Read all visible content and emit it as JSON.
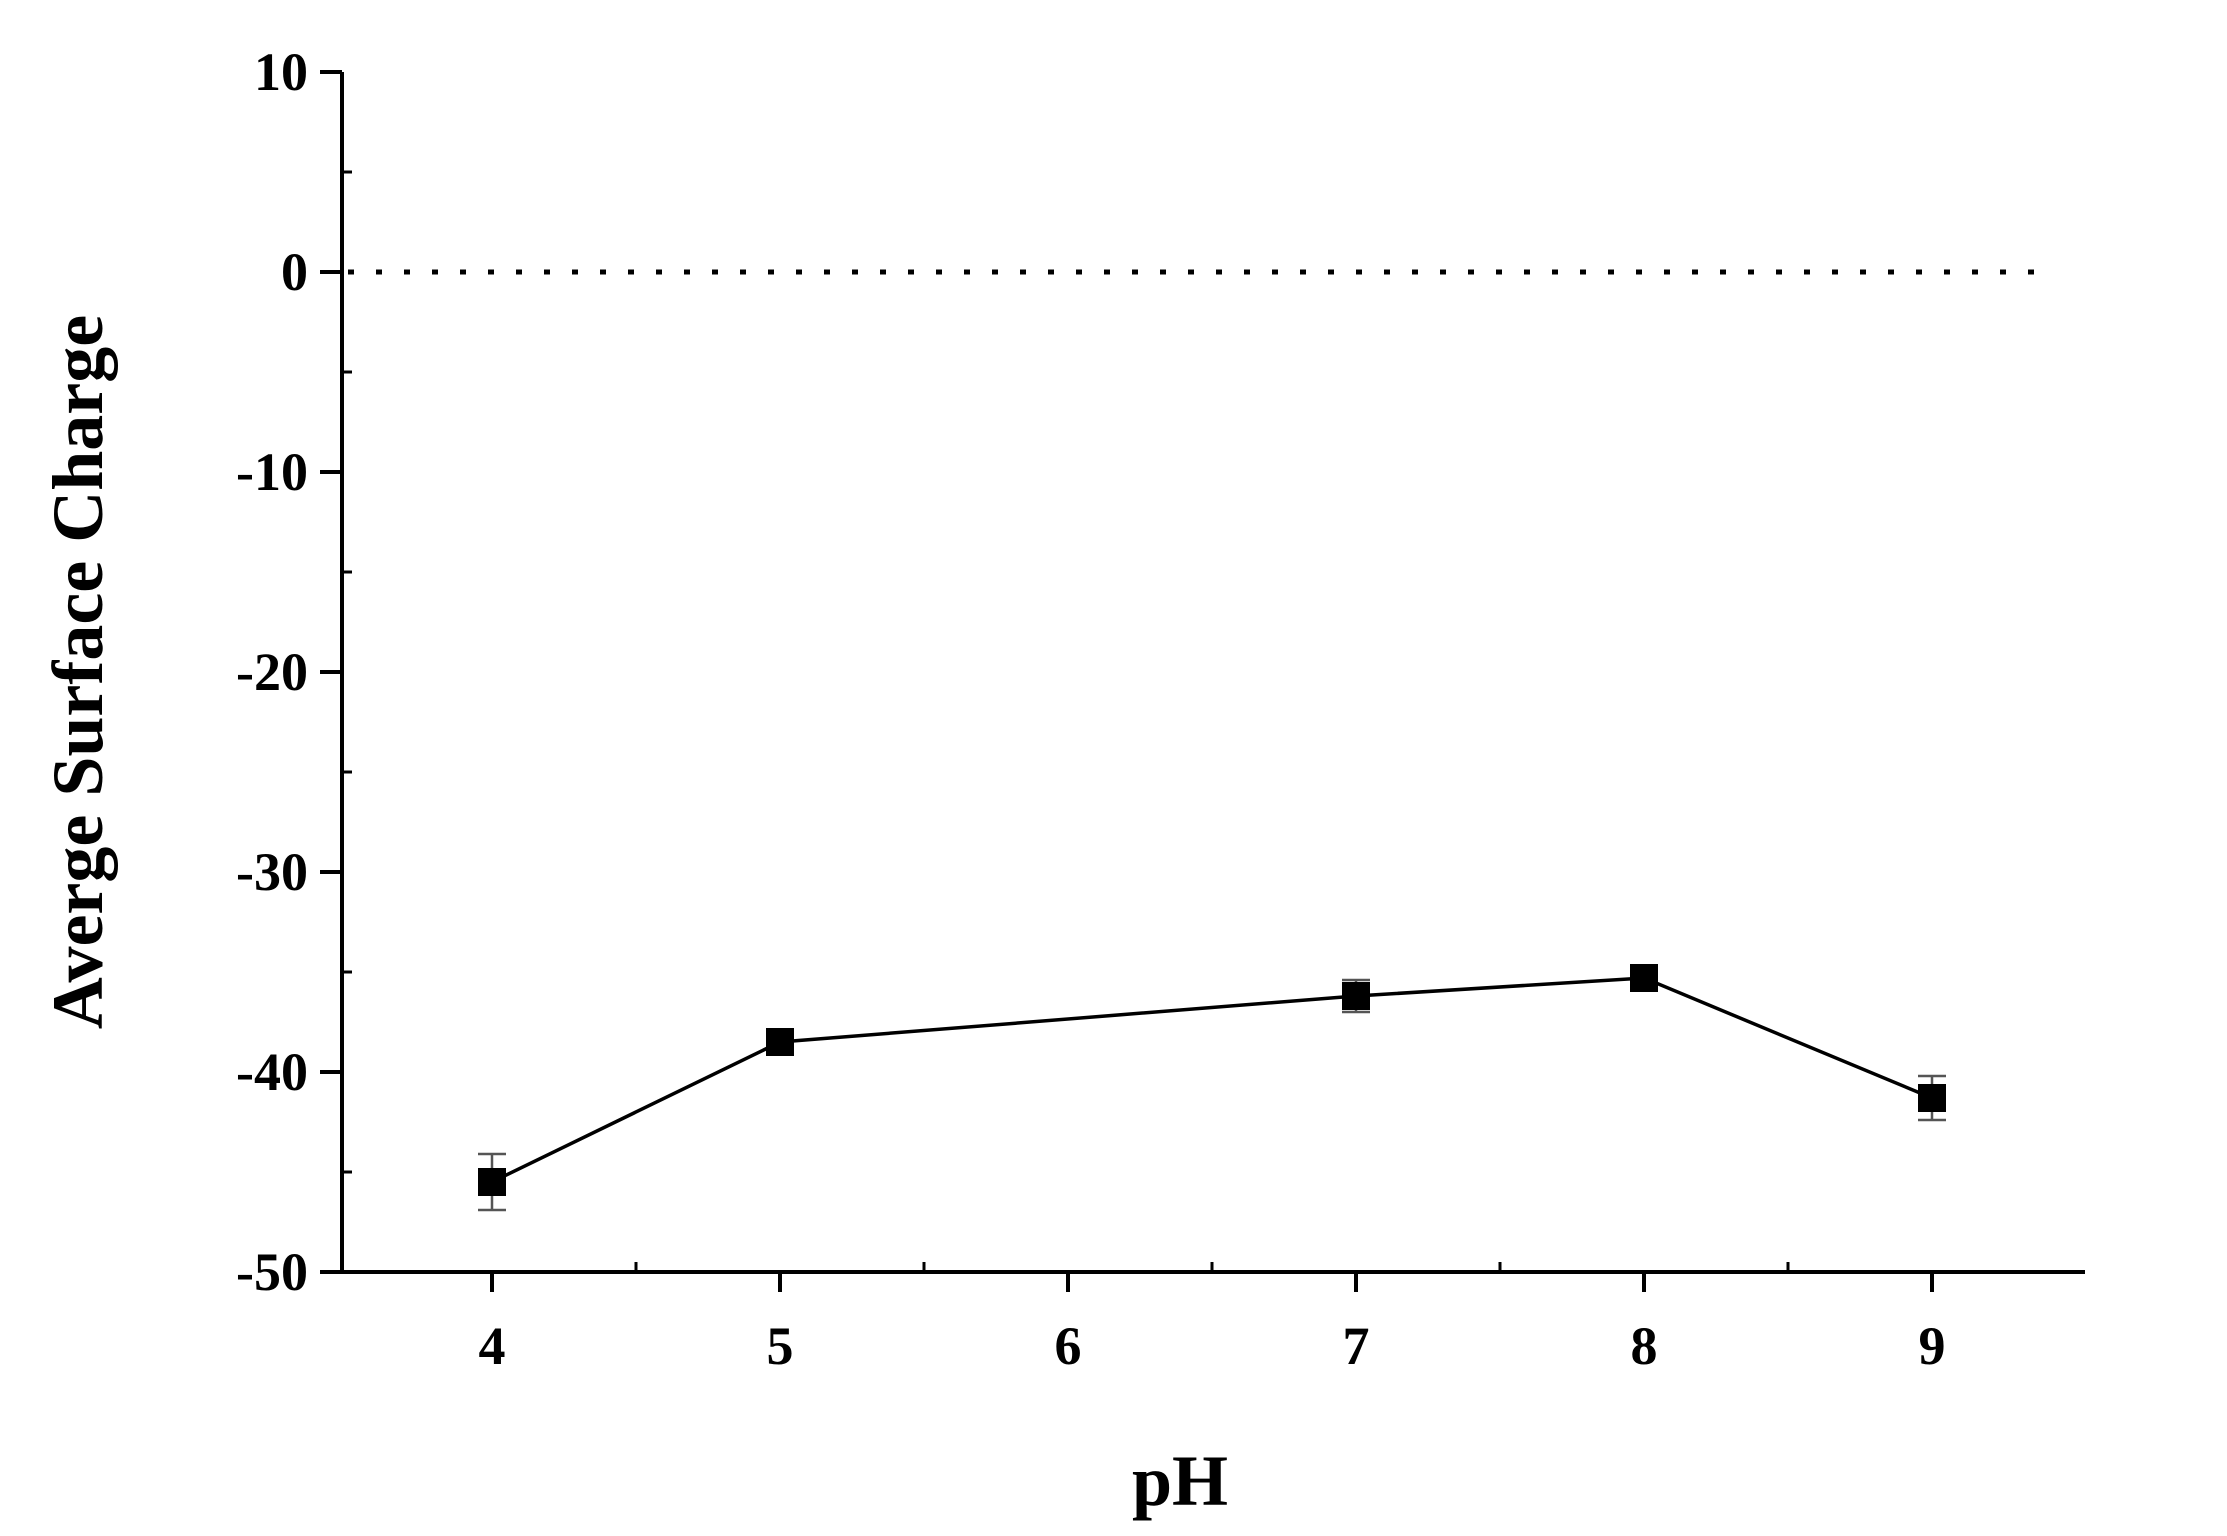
{
  "chart_data": {
    "type": "line",
    "title": "",
    "xlabel": "pH",
    "ylabel": "Averge Surface Charge",
    "x_ticks": [
      "4",
      "5",
      "6",
      "7",
      "8",
      "9"
    ],
    "y_ticks": [
      "10",
      "0",
      "-10",
      "-20",
      "-30",
      "-40",
      "-50"
    ],
    "xlim": [
      3.5,
      9.5
    ],
    "ylim": [
      -50,
      10
    ],
    "grid": false,
    "legend": "none",
    "reference_line": {
      "y": 0,
      "style": "dotted"
    },
    "series": [
      {
        "marker": "square",
        "color": "#000000",
        "points": [
          {
            "x": 4,
            "y": -45.5,
            "err": 1.4
          },
          {
            "x": 5,
            "y": -38.5,
            "err": 0.6
          },
          {
            "x": 7,
            "y": -36.2,
            "err": 0.8
          },
          {
            "x": 8,
            "y": -35.3,
            "err": 0.6
          },
          {
            "x": 9,
            "y": -41.3,
            "err": 1.1
          }
        ]
      }
    ]
  }
}
